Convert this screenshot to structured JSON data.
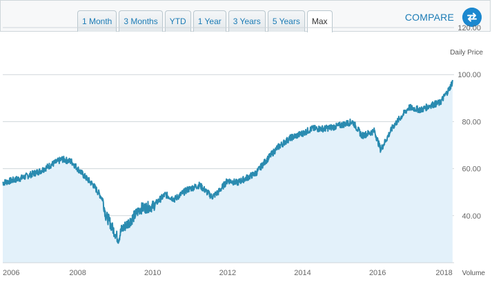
{
  "toolbar": {
    "ranges": [
      "1 Month",
      "3 Months",
      "YTD",
      "1 Year",
      "3 Years",
      "5 Years",
      "Max"
    ],
    "selected": "Max",
    "compare_label": "COMPARE",
    "compare_icon": "swap-arrows-icon"
  },
  "colors": {
    "accent": "#1c88cf",
    "line": "#2a8bb0",
    "fill": "#e3f1fa",
    "link": "#1b7bb5"
  },
  "chart_data": {
    "type": "area",
    "y_axis_title": "Daily Price",
    "x_axis_title": "Volume",
    "x_range": [
      "2006-01-01",
      "2018-01-15"
    ],
    "ylim": [
      20,
      120
    ],
    "y_ticks": [
      "120.00",
      "100.00",
      "80.00",
      "60.00",
      "40.00"
    ],
    "x_ticks": [
      "2006",
      "2008",
      "2010",
      "2012",
      "2014",
      "2016",
      "2018"
    ],
    "grid": true,
    "series": [
      {
        "x": [
          "2006-01",
          "2006-07",
          "2007-01",
          "2007-05",
          "2007-08",
          "2007-11",
          "2008-03",
          "2008-06",
          "2008-09",
          "2008-10",
          "2008-11",
          "2008-12",
          "2009-02",
          "2009-03",
          "2009-06",
          "2009-09",
          "2010-01",
          "2010-05",
          "2010-08",
          "2010-12",
          "2011-04",
          "2011-08",
          "2011-10",
          "2012-01",
          "2012-04",
          "2012-07",
          "2012-10",
          "2013-01",
          "2013-05",
          "2013-09",
          "2014-01",
          "2014-04",
          "2014-08",
          "2014-12",
          "2015-05",
          "2015-08",
          "2015-12",
          "2016-02",
          "2016-06",
          "2016-11",
          "2017-03",
          "2017-06",
          "2017-09",
          "2017-12",
          "2018-01"
        ],
        "y": [
          54,
          56,
          59,
          62,
          64,
          63,
          57,
          53,
          47,
          40,
          38,
          35,
          30,
          34,
          38,
          43,
          44,
          49,
          47,
          51,
          53,
          48,
          50,
          55,
          54,
          56,
          58,
          63,
          69,
          73,
          75,
          77,
          77,
          78,
          80,
          74,
          76,
          68,
          78,
          86,
          85,
          87,
          88,
          94,
          97
        ]
      }
    ]
  }
}
